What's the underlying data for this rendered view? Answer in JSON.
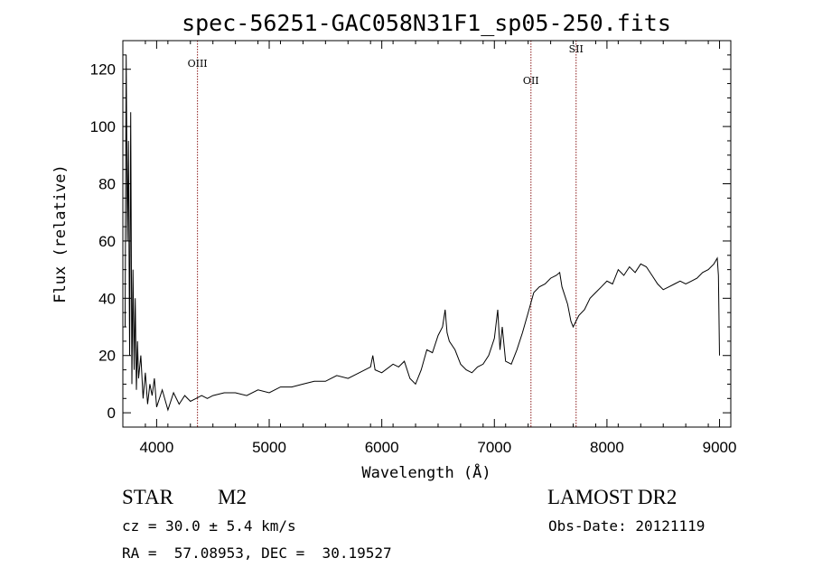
{
  "chart_data": {
    "type": "line",
    "title": "spec-56251-GAC058N31F1_sp05-250.fits",
    "xlabel": "Wavelength (Å)",
    "ylabel": "Flux (relative)",
    "xlim": [
      3700,
      9100
    ],
    "ylim": [
      -5,
      130
    ],
    "xticks": [
      4000,
      5000,
      6000,
      7000,
      8000,
      9000
    ],
    "yticks": [
      0,
      20,
      40,
      60,
      80,
      100,
      120
    ],
    "grid": false,
    "line_color": "#000000",
    "marker_color": "#8b1a1a",
    "series": [
      {
        "x": [
          3720,
          3730,
          3740,
          3750,
          3760,
          3770,
          3780,
          3790,
          3800,
          3810,
          3820,
          3830,
          3840,
          3860,
          3880,
          3900,
          3920,
          3940,
          3960,
          3980,
          4000,
          4050,
          4100,
          4150,
          4200,
          4250,
          4300,
          4350,
          4400,
          4450,
          4500,
          4600,
          4700,
          4800,
          4900,
          5000,
          5100,
          5200,
          5300,
          5400,
          5500,
          5600,
          5700,
          5800,
          5900,
          5920,
          5940,
          6000,
          6100,
          6150,
          6200,
          6250,
          6300,
          6350,
          6400,
          6450,
          6500,
          6540,
          6563,
          6580,
          6600,
          6650,
          6700,
          6750,
          6800,
          6850,
          6900,
          6950,
          7000,
          7030,
          7050,
          7070,
          7100,
          7150,
          7200,
          7250,
          7300,
          7350,
          7400,
          7450,
          7500,
          7550,
          7580,
          7600,
          7650,
          7680,
          7700,
          7750,
          7800,
          7850,
          7900,
          7950,
          8000,
          8050,
          8100,
          8150,
          8200,
          8250,
          8300,
          8350,
          8400,
          8450,
          8500,
          8550,
          8600,
          8650,
          8700,
          8750,
          8800,
          8850,
          8900,
          8950,
          8980,
          8990,
          9000
        ],
        "y": [
          30,
          125,
          60,
          95,
          20,
          105,
          10,
          50,
          15,
          40,
          8,
          25,
          12,
          20,
          5,
          14,
          3,
          10,
          6,
          12,
          2,
          8,
          1,
          7,
          3,
          6,
          4,
          5,
          6,
          5,
          6,
          7,
          7,
          6,
          8,
          7,
          9,
          9,
          10,
          11,
          11,
          13,
          12,
          14,
          16,
          20,
          15,
          14,
          17,
          16,
          18,
          12,
          10,
          15,
          22,
          21,
          27,
          30,
          36,
          28,
          25,
          22,
          17,
          15,
          14,
          16,
          17,
          20,
          26,
          36,
          22,
          30,
          18,
          17,
          22,
          28,
          35,
          42,
          44,
          45,
          47,
          48,
          49,
          44,
          38,
          32,
          30,
          34,
          36,
          40,
          42,
          44,
          46,
          45,
          50,
          48,
          51,
          49,
          52,
          51,
          48,
          45,
          43,
          44,
          45,
          46,
          45,
          46,
          47,
          49,
          50,
          52,
          54,
          48,
          20
        ]
      }
    ],
    "emission_lines": [
      {
        "label": "OIII",
        "x": 4363
      },
      {
        "label": "OII",
        "x": 7325
      },
      {
        "label": "SII",
        "x": 7726
      }
    ]
  },
  "info": {
    "class": "STAR",
    "subclass": "M2",
    "survey": "LAMOST DR2",
    "cz": "cz = 30.0 ± 5.4 km/s",
    "obs_date": "Obs-Date: 20121119",
    "coords": "RA =  57.08953, DEC =  30.19527"
  }
}
